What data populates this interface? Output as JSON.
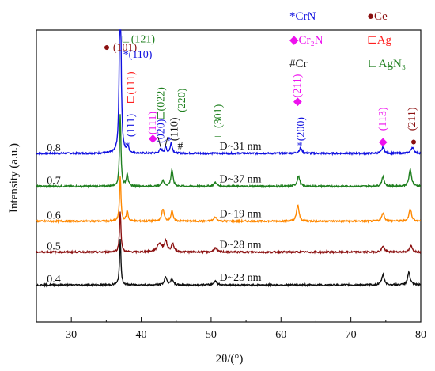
{
  "chart_data": {
    "type": "line",
    "xlabel": "2θ/(°)",
    "ylabel": "Intensity (a.u.)",
    "xlim": [
      25,
      80
    ],
    "x_ticks": [
      30,
      40,
      50,
      60,
      70,
      80
    ],
    "grid": false,
    "series": [
      {
        "name": "0.8",
        "color": "#1010e0",
        "baseline": 0.82,
        "noise_amp": 0.004,
        "peaks": [
          {
            "x": 37.0,
            "h": 1.1,
            "w": 0.12
          },
          {
            "x": 38.1,
            "h": 0.03,
            "w": 0.15
          },
          {
            "x": 42.8,
            "h": 0.02,
            "w": 0.25
          },
          {
            "x": 43.5,
            "h": 0.03,
            "w": 0.15
          },
          {
            "x": 44.3,
            "h": 0.05,
            "w": 0.18
          },
          {
            "x": 62.8,
            "h": 0.025,
            "w": 0.25
          },
          {
            "x": 74.6,
            "h": 0.03,
            "w": 0.22
          },
          {
            "x": 78.8,
            "h": 0.03,
            "w": 0.25
          }
        ],
        "label": "0.8",
        "note": "D~31 nm"
      },
      {
        "name": "0.7",
        "color": "#208020",
        "baseline": 0.66,
        "noise_amp": 0.004,
        "peaks": [
          {
            "x": 37.0,
            "h": 0.35,
            "w": 0.12
          },
          {
            "x": 38.0,
            "h": 0.06,
            "w": 0.15
          },
          {
            "x": 43.1,
            "h": 0.03,
            "w": 0.2
          },
          {
            "x": 44.4,
            "h": 0.08,
            "w": 0.18
          },
          {
            "x": 50.6,
            "h": 0.02,
            "w": 0.25
          },
          {
            "x": 62.5,
            "h": 0.05,
            "w": 0.22
          },
          {
            "x": 74.6,
            "h": 0.045,
            "w": 0.22
          },
          {
            "x": 78.5,
            "h": 0.08,
            "w": 0.22
          }
        ],
        "label": "0.7",
        "note": "D~37 nm"
      },
      {
        "name": "0.6",
        "color": "#ff8800",
        "baseline": 0.49,
        "noise_amp": 0.004,
        "peaks": [
          {
            "x": 37.0,
            "h": 0.22,
            "w": 0.12
          },
          {
            "x": 38.0,
            "h": 0.05,
            "w": 0.15
          },
          {
            "x": 43.1,
            "h": 0.06,
            "w": 0.2
          },
          {
            "x": 44.4,
            "h": 0.05,
            "w": 0.18
          },
          {
            "x": 50.6,
            "h": 0.02,
            "w": 0.25
          },
          {
            "x": 62.4,
            "h": 0.08,
            "w": 0.2
          },
          {
            "x": 74.6,
            "h": 0.04,
            "w": 0.22
          },
          {
            "x": 78.5,
            "h": 0.06,
            "w": 0.22
          }
        ],
        "label": "0.6",
        "note": "D~19 nm"
      },
      {
        "name": "0.5",
        "color": "#8b1010",
        "baseline": 0.34,
        "noise_amp": 0.004,
        "peaks": [
          {
            "x": 37.0,
            "h": 0.2,
            "w": 0.12
          },
          {
            "x": 42.6,
            "h": 0.04,
            "w": 0.4
          },
          {
            "x": 43.5,
            "h": 0.05,
            "w": 0.25
          },
          {
            "x": 44.5,
            "h": 0.04,
            "w": 0.2
          },
          {
            "x": 50.6,
            "h": 0.02,
            "w": 0.25
          },
          {
            "x": 74.6,
            "h": 0.03,
            "w": 0.22
          },
          {
            "x": 78.6,
            "h": 0.03,
            "w": 0.22
          }
        ],
        "label": "0.5",
        "note": "D~28 nm"
      },
      {
        "name": "0.4",
        "color": "#111111",
        "baseline": 0.18,
        "noise_amp": 0.004,
        "peaks": [
          {
            "x": 37.0,
            "h": 0.22,
            "w": 0.12
          },
          {
            "x": 43.5,
            "h": 0.04,
            "w": 0.2
          },
          {
            "x": 44.4,
            "h": 0.03,
            "w": 0.18
          },
          {
            "x": 50.6,
            "h": 0.02,
            "w": 0.25
          },
          {
            "x": 74.6,
            "h": 0.05,
            "w": 0.22
          },
          {
            "x": 78.3,
            "h": 0.06,
            "w": 0.22
          }
        ],
        "label": "0.4",
        "note": "D~23 nm"
      }
    ],
    "legend": {
      "placement": "top-right",
      "entries": [
        {
          "symbol": "*",
          "text": "CrN",
          "color": "#1010e0"
        },
        {
          "symbol": "●",
          "text": "Ce",
          "color": "#8b1010"
        },
        {
          "symbol": "◆",
          "text": "Cr₂N",
          "color": "#ee11ee"
        },
        {
          "symbol": "⊏",
          "text": "Ag",
          "color": "#ff2020"
        },
        {
          "symbol": "#",
          "text": "Cr",
          "color": "#111111"
        },
        {
          "symbol": "∟",
          "text": "AgN₃",
          "color": "#208020"
        }
      ]
    },
    "annotations": [
      {
        "text": "∟(121)",
        "color": "#208020",
        "x": 37.0,
        "y": 1.36,
        "anchor": "start"
      },
      {
        "text": "● (101)",
        "color": "#8b1010",
        "x": 37.0,
        "y": 1.32,
        "anchor": "middle"
      },
      {
        "text": "*(110)",
        "color": "#1010e0",
        "x": 37.4,
        "y": 1.285,
        "anchor": "start"
      },
      {
        "text": "*",
        "color": "#1010e0",
        "x": 38.0,
        "y": 0.84,
        "anchor": "middle"
      },
      {
        "text": "(111)",
        "color": "#1010e0",
        "x": 39.0,
        "y": 0.9,
        "anchor": "start",
        "rotate": true
      },
      {
        "text": "⊏(111)",
        "color": "#ff2020",
        "x": 39.0,
        "y": 1.06,
        "anchor": "start",
        "rotate": true
      },
      {
        "text": "◆(111)",
        "color": "#ee11ee",
        "x": 42.1,
        "y": 0.87,
        "anchor": "start",
        "rotate": true
      },
      {
        "text": "⊏(022)",
        "color": "#208020",
        "x": 43.3,
        "y": 0.98,
        "anchor": "start",
        "rotate": true
      },
      {
        "text": "(020)",
        "color": "#1010e0",
        "x": 43.3,
        "y": 0.87,
        "anchor": "start",
        "rotate": true
      },
      {
        "text": "*",
        "color": "#1010e0",
        "x": 44.0,
        "y": 0.865,
        "anchor": "middle"
      },
      {
        "text": "(110)",
        "color": "#111111",
        "x": 45.2,
        "y": 0.88,
        "anchor": "start",
        "rotate": true
      },
      {
        "text": "(220)",
        "color": "#208020",
        "x": 46.3,
        "y": 1.02,
        "anchor": "start",
        "rotate": true
      },
      {
        "text": "#",
        "color": "#111111",
        "x": 45.6,
        "y": 0.84,
        "anchor": "middle"
      },
      {
        "text": "∟(301)",
        "color": "#208020",
        "x": 51.5,
        "y": 0.89,
        "anchor": "start",
        "rotate": true
      },
      {
        "text": "◆(211)",
        "color": "#ee11ee",
        "x": 62.8,
        "y": 1.05,
        "anchor": "start",
        "rotate": true
      },
      {
        "text": "(200)",
        "color": "#1010e0",
        "x": 63.3,
        "y": 0.88,
        "anchor": "start",
        "rotate": true
      },
      {
        "text": "*",
        "color": "#1010e0",
        "x": 62.7,
        "y": 0.84,
        "anchor": "middle"
      },
      {
        "text": "(113)",
        "color": "#ee11ee",
        "x": 75.0,
        "y": 0.93,
        "anchor": "start",
        "rotate": true
      },
      {
        "text": "◆",
        "color": "#ee11ee",
        "x": 74.6,
        "y": 0.86,
        "anchor": "middle"
      },
      {
        "text": "(211)",
        "color": "#8b1010",
        "x": 79.2,
        "y": 0.93,
        "anchor": "start",
        "rotate": true
      },
      {
        "text": "●",
        "color": "#8b1010",
        "x": 79.0,
        "y": 0.86,
        "anchor": "middle"
      }
    ]
  }
}
